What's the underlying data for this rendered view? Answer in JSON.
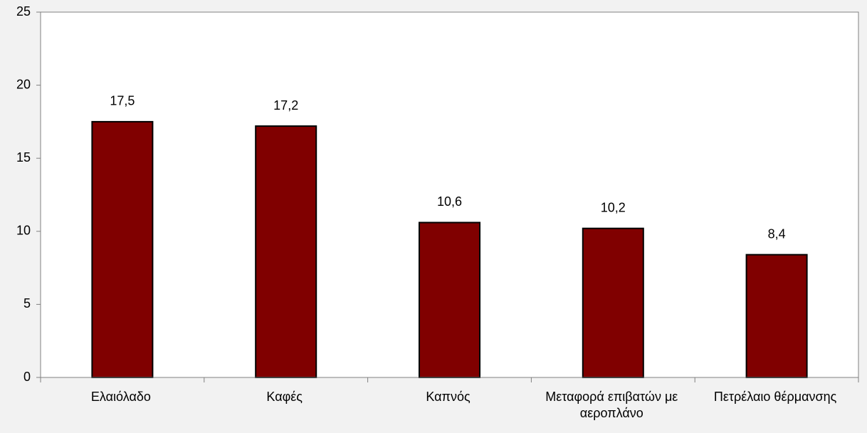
{
  "chart_data": {
    "type": "bar",
    "categories": [
      "Ελαιόλαδο",
      "Καφές",
      "Καπνός",
      "Μεταφορά επιβατών με αεροπλάνο",
      "Πετρέλαιο θέρμανσης"
    ],
    "values": [
      17.5,
      17.2,
      10.6,
      10.2,
      8.4
    ],
    "value_labels": [
      "17,5",
      "17,2",
      "10,6",
      "10,2",
      "8,4"
    ],
    "color": "#800000",
    "ylim": [
      0,
      25
    ],
    "yticks": [
      0,
      5,
      10,
      15,
      20,
      25
    ],
    "grid": false
  }
}
